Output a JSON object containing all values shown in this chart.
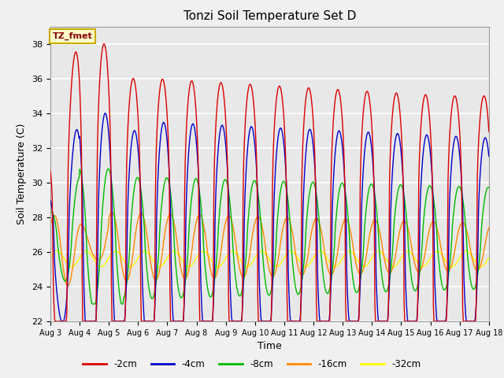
{
  "title": "Tonzi Soil Temperature Set D",
  "xlabel": "Time",
  "ylabel": "Soil Temperature (C)",
  "ylim": [
    22,
    39
  ],
  "yticks": [
    22,
    24,
    26,
    28,
    30,
    32,
    34,
    36,
    38
  ],
  "xtick_labels": [
    "Aug 3",
    "Aug 4",
    "Aug 5",
    "Aug 6",
    "Aug 7",
    "Aug 8",
    "Aug 9",
    "Aug 10",
    "Aug 11",
    "Aug 12",
    "Aug 13",
    "Aug 14",
    "Aug 15",
    "Aug 16",
    "Aug 17",
    "Aug 18"
  ],
  "annotation_text": "TZ_fmet",
  "annotation_bg": "#ffffcc",
  "annotation_border": "#ccaa00",
  "colors": {
    "-2cm": "#dd0000",
    "-4cm": "#0000cc",
    "-8cm": "#00bb00",
    "-16cm": "#ff8800",
    "-32cm": "#ffff00"
  },
  "legend_labels": [
    "-2cm",
    "-4cm",
    "-8cm",
    "-16cm",
    "-32cm"
  ],
  "plot_bg": "#e8e8e8",
  "fig_bg": "#f0f0f0",
  "grid_color": "#ffffff"
}
